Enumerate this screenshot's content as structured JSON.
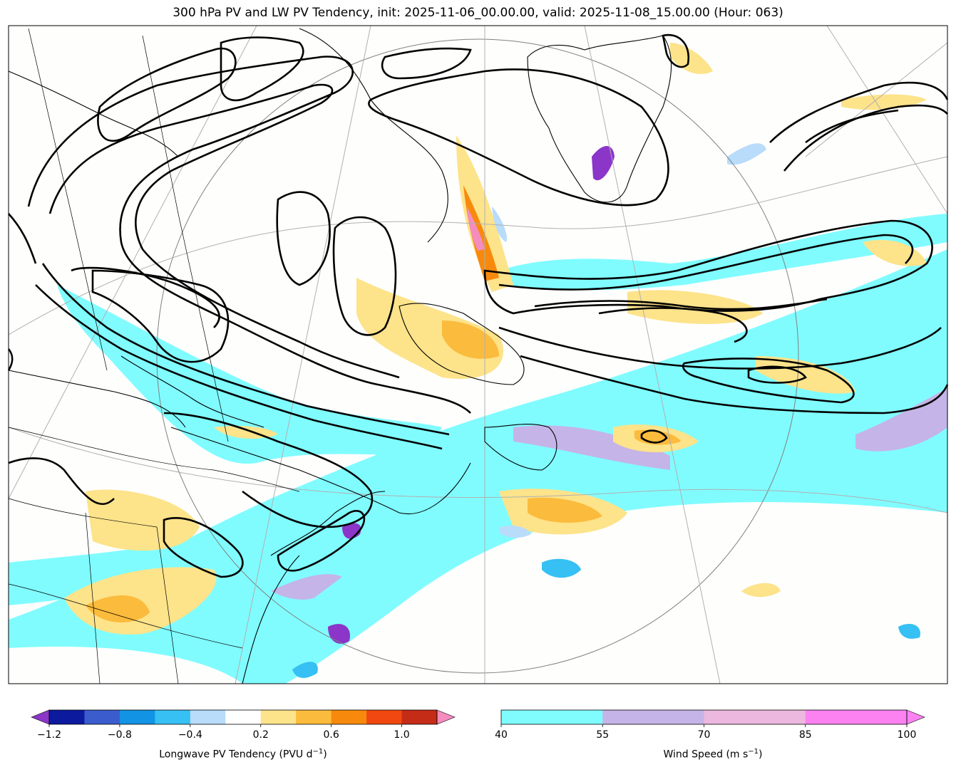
{
  "title": "300 hPa PV and LW PV Tendency, init: 2025-11-06_00.00.00, valid: 2025-11-08_15.00.00 (Hour: 063)",
  "pv_colorbar": {
    "label_main": "Longwave PV Tendency (PVU d",
    "label_exp": "−1",
    "label_close": ")",
    "ticks": [
      "−1.2",
      "−0.8",
      "−0.4",
      "0.2",
      "0.6",
      "1.0"
    ],
    "colors": [
      "#0c1a9e",
      "#3a5ccc",
      "#1393e3",
      "#36c0f3",
      "#b8dcfa",
      "#ffffff",
      "#fde38a",
      "#fbbb3c",
      "#f78a0c",
      "#f04810",
      "#c42c18"
    ],
    "under_color": "#8b35c9",
    "over_color": "#f58cc0"
  },
  "wind_colorbar": {
    "label_main": "Wind Speed (m s",
    "label_exp": "−1",
    "label_close": ")",
    "ticks": [
      "40",
      "55",
      "70",
      "85",
      "100"
    ],
    "colors": [
      "#80fcff",
      "#c5b4e7",
      "#ecb8df",
      "#fc82f2"
    ],
    "over_color": "#fc82f2"
  }
}
